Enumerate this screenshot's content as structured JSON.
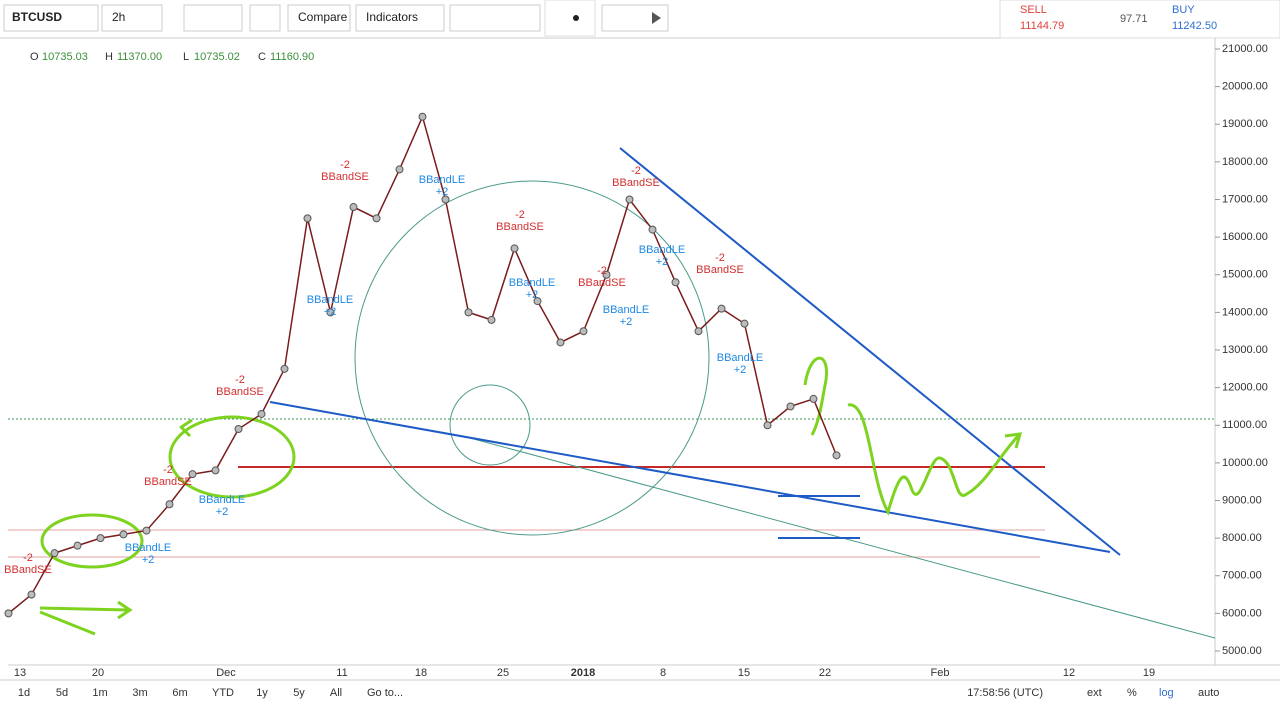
{
  "toolbar": {
    "symbol": "BTCUSD",
    "interval": "2h",
    "compare": "Compare",
    "indicators": "Indicators"
  },
  "quote": {
    "sell_label": "SELL",
    "sell": "11144.79",
    "spread": "97.71",
    "buy_label": "BUY",
    "buy": "11242.50"
  },
  "legend": {
    "o_label": "O",
    "o": "10735.03",
    "h_label": "H",
    "h": "11370.00",
    "l_label": "L",
    "l": "10735.02",
    "c_label": "C",
    "c": "11160.90"
  },
  "chart_data": {
    "type": "line",
    "symbol": "BTCUSD",
    "color": "#7a1c1c",
    "values": [
      6000,
      6500,
      7600,
      7800,
      8000,
      8100,
      8200,
      8900,
      9700,
      9800,
      10900,
      11300,
      12500,
      16500,
      14000,
      16800,
      16500,
      17800,
      19200,
      17000,
      14000,
      13800,
      15700,
      14300,
      13200,
      13500,
      15000,
      17000,
      16200,
      14800,
      13500,
      14100,
      13700,
      11000,
      11500,
      11700,
      10200
    ],
    "ylim": [
      5000,
      21000
    ],
    "yticks": [
      {
        "value": 5000,
        "label": "5000.00"
      },
      {
        "value": 6000,
        "label": "6000.00"
      },
      {
        "value": 7000,
        "label": "7000.00"
      },
      {
        "value": 8000,
        "label": "8000.00"
      },
      {
        "value": 9000,
        "label": "9000.00"
      },
      {
        "value": 10000,
        "label": "10000.00"
      },
      {
        "value": 11000,
        "label": "11000.00"
      },
      {
        "value": 12000,
        "label": "12000.00"
      },
      {
        "value": 13000,
        "label": "13000.00"
      },
      {
        "value": 14000,
        "label": "14000.00"
      },
      {
        "value": 15000,
        "label": "15000.00"
      },
      {
        "value": 16000,
        "label": "16000.00"
      },
      {
        "value": 17000,
        "label": "17000.00"
      },
      {
        "value": 18000,
        "label": "18000.00"
      },
      {
        "value": 19000,
        "label": "19000.00"
      },
      {
        "value": 20000,
        "label": "20000.00"
      },
      {
        "value": 21000,
        "label": "21000.00"
      }
    ],
    "x_labels": [
      "13",
      "20",
      "Dec",
      "11",
      "18",
      "25",
      "2018",
      "8",
      "15",
      "22",
      "Feb",
      "12",
      "19"
    ],
    "signals": [
      {
        "name": "BBandSE",
        "qty": "-2"
      },
      {
        "name": "BBandLE",
        "qty": "+2"
      },
      {
        "name": "BBandSE",
        "qty": "-2"
      },
      {
        "name": "BBandLE",
        "qty": "+2"
      },
      {
        "name": "BBandSE",
        "qty": "-2"
      },
      {
        "name": "BBandSE",
        "qty": "-2"
      },
      {
        "name": "BBandLE",
        "qty": "+2"
      },
      {
        "name": "BBandLE",
        "qty": "+2"
      },
      {
        "name": "BBandSE",
        "qty": "-2"
      },
      {
        "name": "BBandLE",
        "qty": "+2"
      },
      {
        "name": "BBandSE",
        "qty": "-2"
      },
      {
        "name": "BBandLE",
        "qty": "+2"
      },
      {
        "name": "BBandSE",
        "qty": "-2"
      },
      {
        "name": "BBandLE",
        "qty": "+2"
      },
      {
        "name": "BBandSE",
        "qty": "-2"
      },
      {
        "name": "BBandLE",
        "qty": "+2"
      }
    ]
  },
  "bottom": {
    "ranges": [
      "1d",
      "5d",
      "1m",
      "3m",
      "6m",
      "YTD",
      "1y",
      "5y",
      "All"
    ],
    "goto": "Go to...",
    "time": "17:58:56 (UTC)",
    "ext": "ext",
    "percent": "%",
    "log": "log",
    "auto": "auto"
  }
}
